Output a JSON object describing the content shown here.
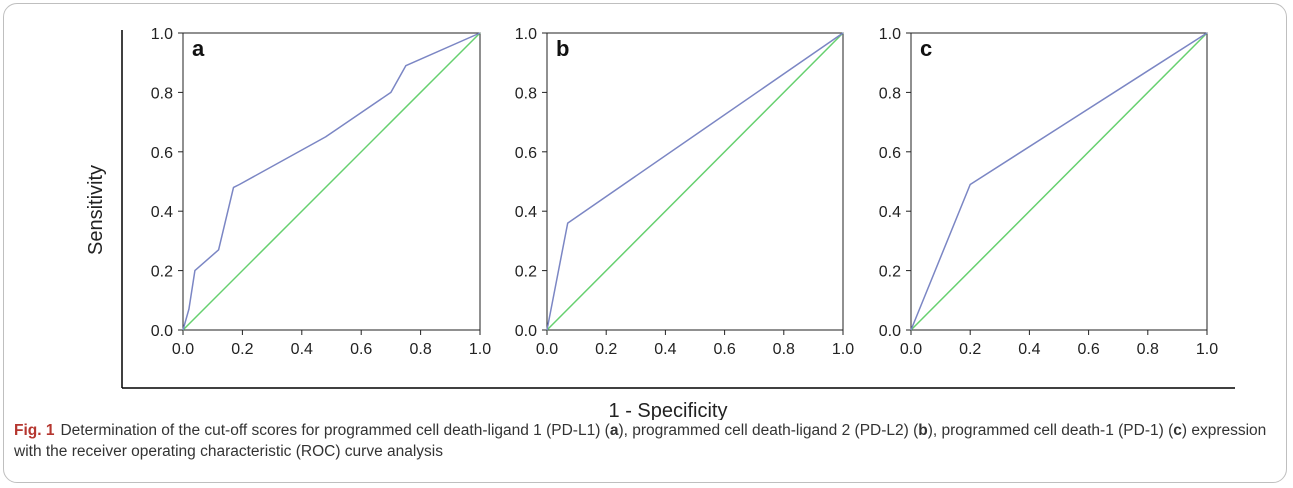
{
  "chart_data": [
    {
      "type": "line",
      "panel_label": "a",
      "xlim": [
        0.0,
        1.0
      ],
      "ylim": [
        0.0,
        1.0
      ],
      "x_ticks": [
        "0.0",
        "0.2",
        "0.4",
        "0.6",
        "0.8",
        "1.0"
      ],
      "y_ticks": [
        "0.0",
        "0.2",
        "0.4",
        "0.6",
        "0.8",
        "1.0"
      ],
      "series": [
        {
          "color": "#7b86c4",
          "points": [
            [
              0.0,
              0.0
            ],
            [
              0.02,
              0.07
            ],
            [
              0.04,
              0.2
            ],
            [
              0.12,
              0.27
            ],
            [
              0.17,
              0.48
            ],
            [
              0.19,
              0.49
            ],
            [
              0.48,
              0.65
            ],
            [
              0.7,
              0.8
            ],
            [
              0.75,
              0.89
            ],
            [
              1.0,
              1.0
            ]
          ]
        },
        {
          "color": "#66d06f",
          "points": [
            [
              0.0,
              0.0
            ],
            [
              1.0,
              1.0
            ]
          ]
        }
      ]
    },
    {
      "type": "line",
      "panel_label": "b",
      "xlim": [
        0.0,
        1.0
      ],
      "ylim": [
        0.0,
        1.0
      ],
      "x_ticks": [
        "0.0",
        "0.2",
        "0.4",
        "0.6",
        "0.8",
        "1.0"
      ],
      "y_ticks": [
        "0.0",
        "0.2",
        "0.4",
        "0.6",
        "0.8",
        "1.0"
      ],
      "series": [
        {
          "color": "#7b86c4",
          "points": [
            [
              0.0,
              0.0
            ],
            [
              0.07,
              0.36
            ],
            [
              1.0,
              1.0
            ]
          ]
        },
        {
          "color": "#66d06f",
          "points": [
            [
              0.0,
              0.0
            ],
            [
              1.0,
              1.0
            ]
          ]
        }
      ]
    },
    {
      "type": "line",
      "panel_label": "c",
      "xlim": [
        0.0,
        1.0
      ],
      "ylim": [
        0.0,
        1.0
      ],
      "x_ticks": [
        "0.0",
        "0.2",
        "0.4",
        "0.6",
        "0.8",
        "1.0"
      ],
      "y_ticks": [
        "0.0",
        "0.2",
        "0.4",
        "0.6",
        "0.8",
        "1.0"
      ],
      "series": [
        {
          "color": "#7b86c4",
          "points": [
            [
              0.0,
              0.0
            ],
            [
              0.2,
              0.49
            ],
            [
              1.0,
              1.0
            ]
          ]
        },
        {
          "color": "#66d06f",
          "points": [
            [
              0.0,
              0.0
            ],
            [
              1.0,
              1.0
            ]
          ]
        }
      ]
    }
  ],
  "axes": {
    "ylabel": "Sensitivity",
    "xlabel": "1 - Specificity"
  },
  "caption": {
    "label": "Fig. 1",
    "part1": "Determination of the cut-off scores for programmed cell death-ligand 1 (PD-L1) (",
    "l1": "a",
    "part2": "), programmed cell death-ligand 2 (PD-L2) (",
    "l2": "b",
    "part3": "), programmed cell death-1 (PD-1) (",
    "l3": "c",
    "part4": ") expression with the receiver operating characteristic (ROC) curve analysis"
  }
}
